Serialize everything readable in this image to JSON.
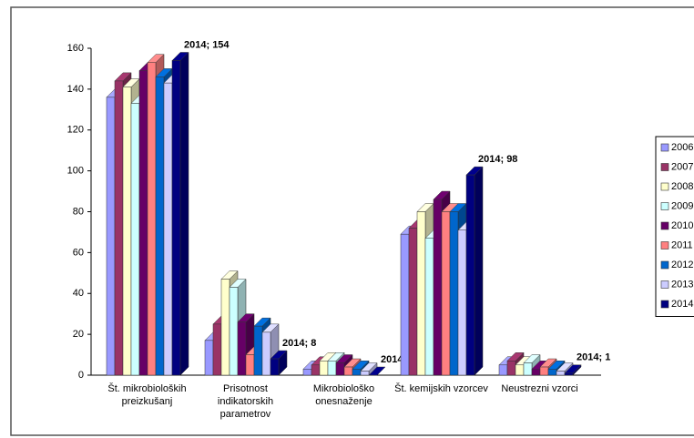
{
  "chart_data": {
    "type": "bar3d",
    "categories": [
      "Št. mikrobioloških preizkušanj",
      "Prisotnost indikatorskih parametrov",
      "Mikrobiološko onesnaženje",
      "Št. kemijskih vzorcev",
      "Neustrezni vzorci"
    ],
    "series": [
      {
        "name": "2006",
        "color": "#9999ff",
        "values": [
          136,
          17,
          3,
          69,
          5
        ]
      },
      {
        "name": "2007",
        "color": "#993366",
        "values": [
          144,
          25,
          5,
          72,
          7
        ]
      },
      {
        "name": "2008",
        "color": "#ffffcc",
        "values": [
          141,
          47,
          7,
          80,
          5
        ]
      },
      {
        "name": "2009",
        "color": "#ccffff",
        "values": [
          133,
          43,
          7,
          67,
          6
        ]
      },
      {
        "name": "2010",
        "color": "#660066",
        "values": [
          149,
          26,
          6,
          86,
          3
        ]
      },
      {
        "name": "2011",
        "color": "#ff8080",
        "values": [
          153,
          10,
          4,
          80,
          4
        ]
      },
      {
        "name": "2012",
        "color": "#0066cc",
        "values": [
          146,
          24,
          3,
          80,
          3
        ]
      },
      {
        "name": "2013",
        "color": "#ccccff",
        "values": [
          143,
          21,
          2,
          71,
          2
        ]
      },
      {
        "name": "2014",
        "color": "#000080",
        "values": [
          154,
          8,
          0,
          98,
          1
        ],
        "value_labels": [
          "2014; 154",
          "2014; 8",
          "2014; 0",
          "2014; 98",
          "2014; 1"
        ]
      }
    ],
    "ylim": [
      0,
      160
    ],
    "yticks": [
      0,
      20,
      40,
      60,
      80,
      100,
      120,
      140,
      160
    ],
    "legend": "right"
  }
}
